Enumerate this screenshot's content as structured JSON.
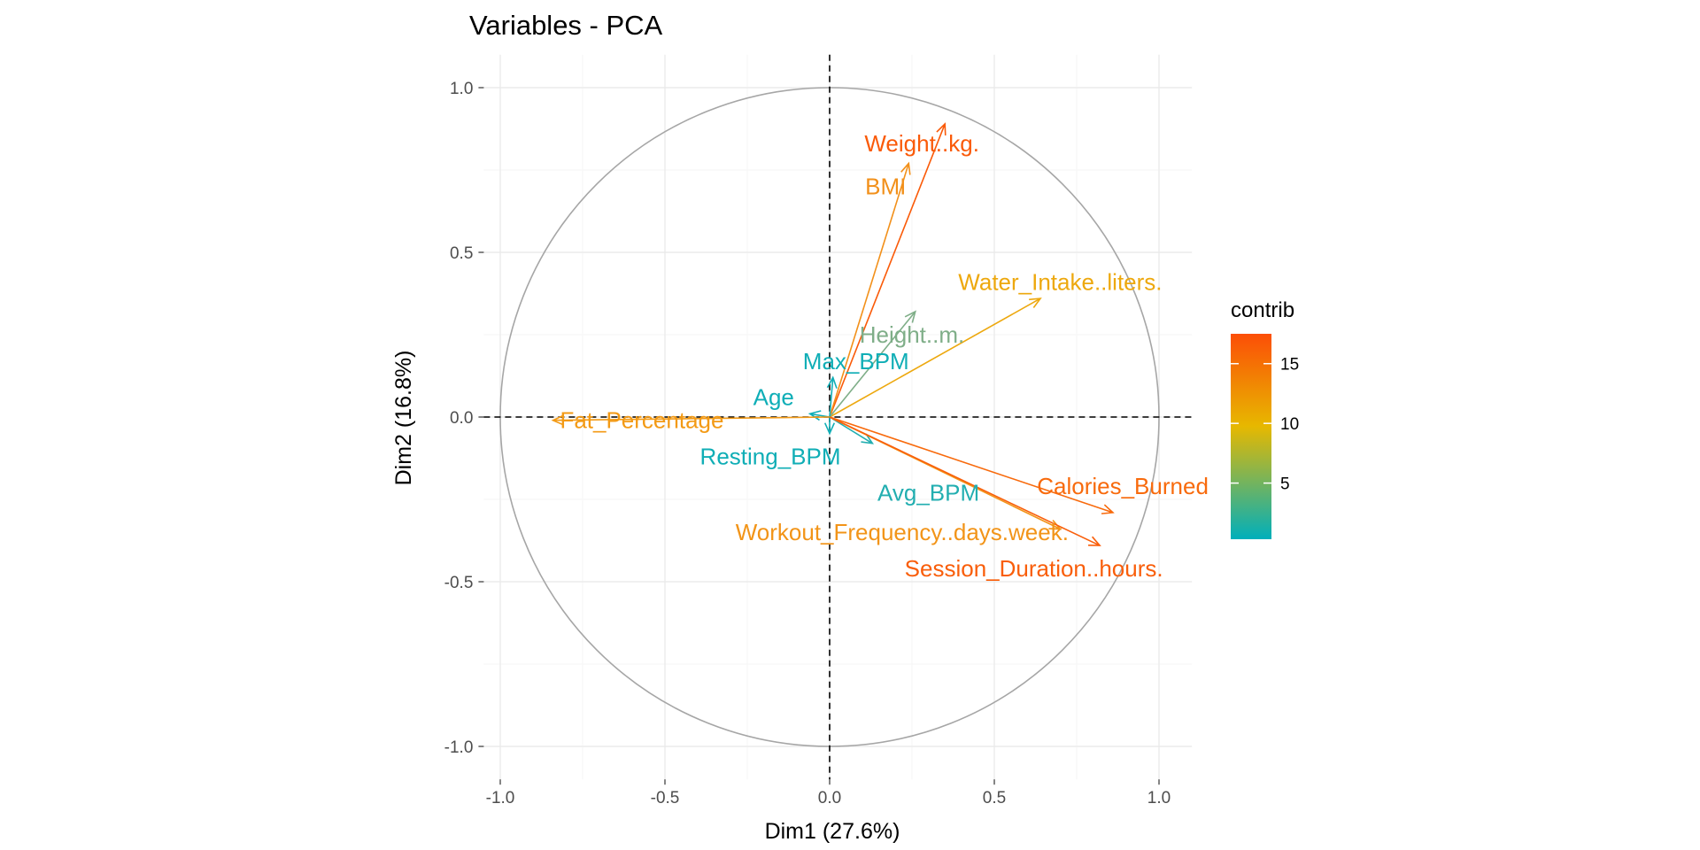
{
  "chart_data": {
    "type": "scatter",
    "subtype": "pca-variable-correlation-circle",
    "title": "Variables - PCA",
    "xlabel": "Dim1 (27.6%)",
    "ylabel": "Dim2 (16.8%)",
    "xlim": [
      -1.05,
      1.1
    ],
    "ylim": [
      -1.1,
      1.1
    ],
    "x_ticks": [
      -1.0,
      -0.5,
      0.0,
      0.5,
      1.0
    ],
    "x_tick_labels": [
      "-1.0",
      "-0.5",
      "0.0",
      "0.5",
      "1.0"
    ],
    "y_ticks": [
      1.0,
      0.5,
      0.0,
      -0.5,
      -1.0
    ],
    "y_tick_labels": [
      "1.0",
      "0.5",
      "0.0",
      "-0.5",
      "-1.0"
    ],
    "grid": true,
    "unit_circle": true,
    "legend": {
      "title": "contrib",
      "placement": "right",
      "ticks": [
        15,
        10,
        5
      ],
      "tick_labels": [
        "15",
        "10",
        "5"
      ],
      "range": [
        0.3,
        17.5
      ],
      "gradient_colors": [
        "#00AFBB",
        "#E7B800",
        "#FC4E07"
      ]
    },
    "variables": [
      {
        "name": "Weight..kg.",
        "x": 0.35,
        "y": 0.89,
        "contrib": 16.8,
        "color": "#FA5A08",
        "label_x": 0.28,
        "label_y": 0.83
      },
      {
        "name": "BMI",
        "x": 0.24,
        "y": 0.77,
        "contrib": 12.8,
        "color": "#F2901A",
        "label_x": 0.17,
        "label_y": 0.7
      },
      {
        "name": "Water_Intake..liters.",
        "x": 0.64,
        "y": 0.36,
        "contrib": 10.9,
        "color": "#EDA80E",
        "label_x": 0.7,
        "label_y": 0.41
      },
      {
        "name": "Height..m.",
        "x": 0.26,
        "y": 0.32,
        "contrib": 4.0,
        "color": "#7FAE88",
        "label_x": 0.25,
        "label_y": 0.25
      },
      {
        "name": "Max_BPM",
        "x": 0.01,
        "y": 0.12,
        "contrib": 0.6,
        "color": "#10AEB6",
        "label_x": 0.08,
        "label_y": 0.17
      },
      {
        "name": "Age",
        "x": -0.06,
        "y": 0.01,
        "contrib": 0.3,
        "color": "#0FAEB7",
        "label_x": -0.17,
        "label_y": 0.06
      },
      {
        "name": "Fat_Percentage",
        "x": -0.84,
        "y": -0.01,
        "contrib": 11.8,
        "color": "#F39A15",
        "label_x": -0.57,
        "label_y": -0.01
      },
      {
        "name": "Resting_BPM",
        "x": 0.0,
        "y": -0.05,
        "contrib": 0.5,
        "color": "#10AEB6",
        "label_x": -0.18,
        "label_y": -0.12
      },
      {
        "name": "Avg_BPM",
        "x": 0.13,
        "y": -0.08,
        "contrib": 1.2,
        "color": "#22AEB0",
        "label_x": 0.3,
        "label_y": -0.23
      },
      {
        "name": "Calories_Burned",
        "x": 0.86,
        "y": -0.29,
        "contrib": 15.5,
        "color": "#F86A0C",
        "label_x": 0.89,
        "label_y": -0.21
      },
      {
        "name": "Workout_Frequency..days.week.",
        "x": 0.7,
        "y": -0.34,
        "contrib": 12.2,
        "color": "#F29418",
        "label_x": 0.22,
        "label_y": -0.35
      },
      {
        "name": "Session_Duration..hours.",
        "x": 0.82,
        "y": -0.39,
        "contrib": 16.4,
        "color": "#F95E0A",
        "label_x": 0.62,
        "label_y": -0.46
      }
    ]
  }
}
